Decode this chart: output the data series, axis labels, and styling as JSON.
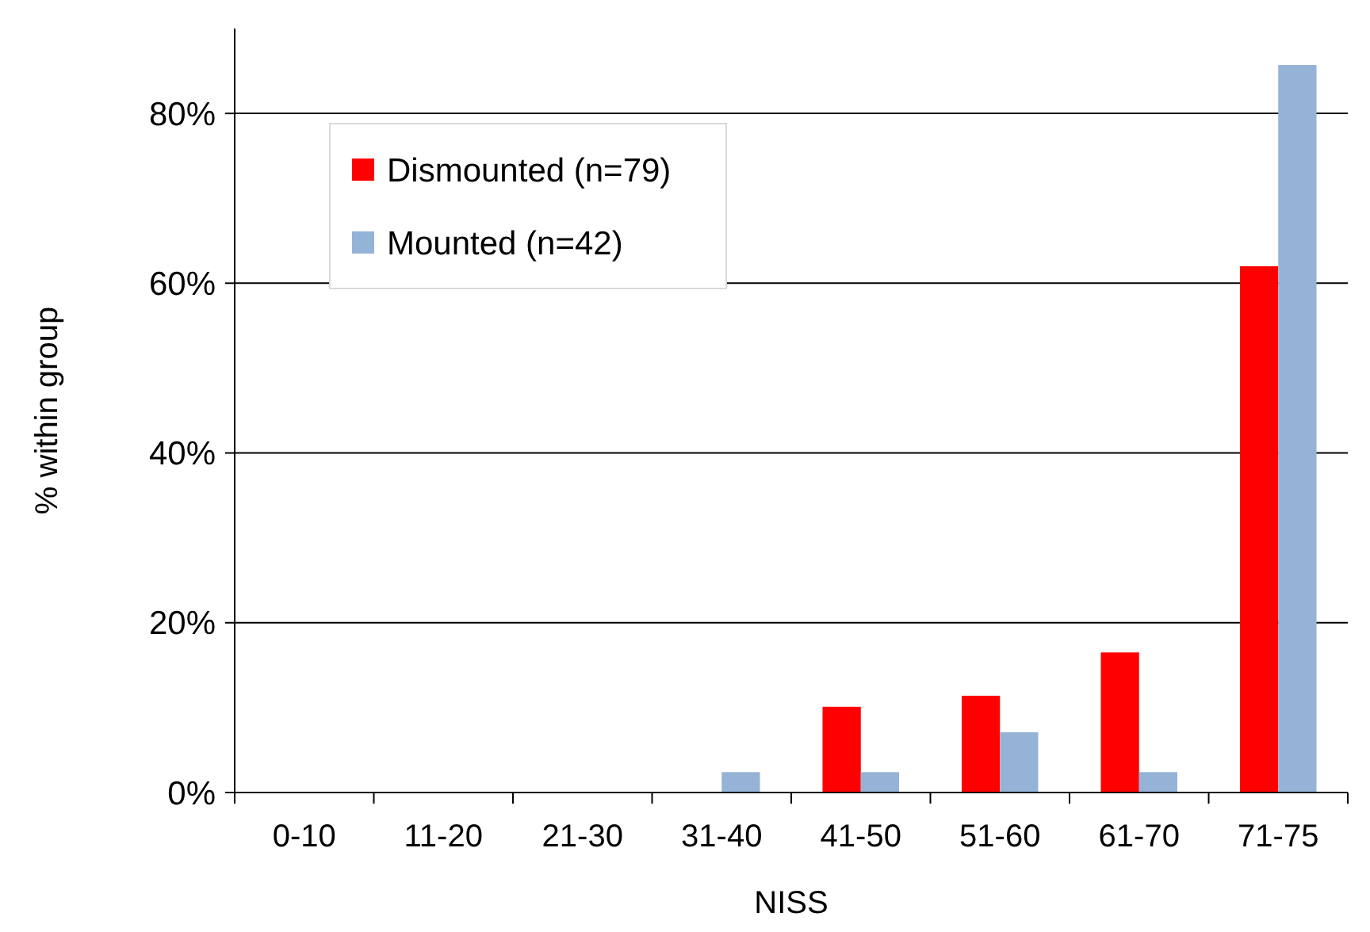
{
  "chart_data": {
    "type": "bar",
    "xlabel": "NISS",
    "ylabel": "% within group",
    "categories": [
      "0-10",
      "11-20",
      "21-30",
      "31-40",
      "41-50",
      "51-60",
      "61-70",
      "71-75"
    ],
    "series": [
      {
        "name": "Dismounted (n=79)",
        "color": "#ff0000",
        "values": [
          0,
          0,
          0,
          0,
          10.1,
          11.4,
          16.5,
          62.0
        ]
      },
      {
        "name": "Mounted (n=42)",
        "color": "#95b3d7",
        "values": [
          0,
          0,
          0,
          2.4,
          2.4,
          7.1,
          2.4,
          85.7
        ]
      }
    ],
    "ylim": [
      0,
      90
    ],
    "yticks": [
      {
        "value": 0,
        "label": "0%"
      },
      {
        "value": 20,
        "label": "20%"
      },
      {
        "value": 40,
        "label": "40%"
      },
      {
        "value": 60,
        "label": "60%"
      },
      {
        "value": 80,
        "label": "80%"
      }
    ],
    "grid": "y",
    "legend": "top left"
  }
}
